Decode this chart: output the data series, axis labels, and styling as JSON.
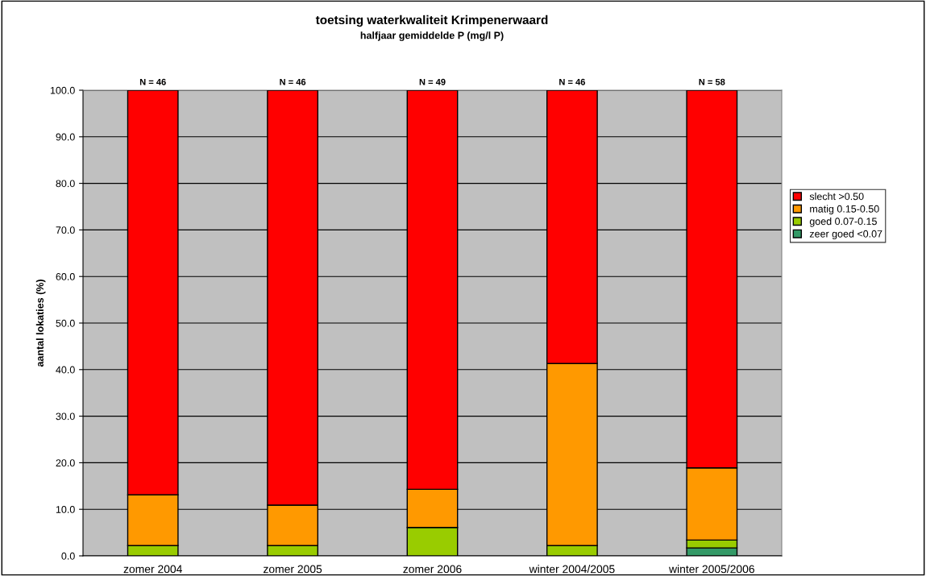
{
  "chart_data": {
    "type": "bar",
    "title": "toetsing waterkwaliteit Krimpenerwaard",
    "subtitle": "halfjaar gemiddelde P (mg/l P)",
    "ylabel": "aantal lokaties (%)",
    "categories": [
      "zomer 2004",
      "zomer 2005",
      "zomer 2006",
      "winter 2004/2005",
      "winter 2005/2006"
    ],
    "stacked": true,
    "series": [
      {
        "name": "zeer goed <0.07",
        "color": "#339966",
        "values": [
          0,
          0,
          0,
          0,
          1.7
        ]
      },
      {
        "name": "goed 0.07-0.15",
        "color": "#99cc00",
        "values": [
          2.2,
          2.2,
          6.1,
          2.2,
          1.7
        ]
      },
      {
        "name": "matig 0.15-0.50",
        "color": "#ff9900",
        "values": [
          10.9,
          8.7,
          8.2,
          39.1,
          15.5
        ]
      },
      {
        "name": "slecht >0.50",
        "color": "#ff0000",
        "values": [
          86.9,
          89.1,
          85.7,
          58.7,
          81.1
        ]
      }
    ],
    "ylim": [
      0,
      100
    ],
    "yticks": [
      {
        "value": 0,
        "label": "0.0"
      },
      {
        "value": 10,
        "label": "10.0"
      },
      {
        "value": 20,
        "label": "20.0"
      },
      {
        "value": 30,
        "label": "30.0"
      },
      {
        "value": 40,
        "label": "40.0"
      },
      {
        "value": 50,
        "label": "50.0"
      },
      {
        "value": 60,
        "label": "60.0"
      },
      {
        "value": 70,
        "label": "70.0"
      },
      {
        "value": 80,
        "label": "80.0"
      },
      {
        "value": 90,
        "label": "90.0"
      },
      {
        "value": 100,
        "label": "100.0"
      }
    ],
    "grid": "y",
    "legend": "right",
    "annotations": [
      {
        "text": "N = 46",
        "x": "zomer 2004",
        "y": 100
      },
      {
        "text": "N = 46",
        "x": "zomer 2005",
        "y": 100
      },
      {
        "text": "N = 49",
        "x": "zomer 2006",
        "y": 100
      },
      {
        "text": "N = 46",
        "x": "winter 2004/2005",
        "y": 100
      },
      {
        "text": "N = 58",
        "x": "winter 2005/2006",
        "y": 100
      }
    ]
  }
}
